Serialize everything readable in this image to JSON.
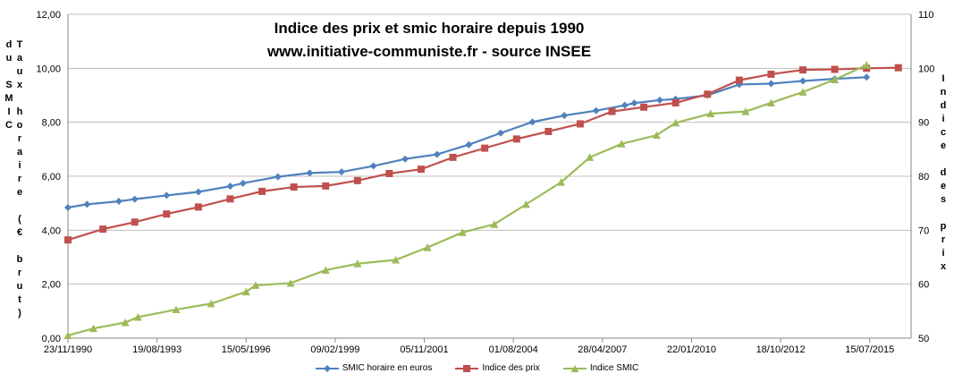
{
  "chart_data": {
    "type": "line",
    "title": "Indice des prix et smic horaire depuis 1990",
    "subtitle": "www.initiative-communiste.fr  - source INSEE",
    "ylabel_left": "Taux horaire (€ brut) du SMIC",
    "ylabel_right": "Indice des prix",
    "ylim_left": [
      0,
      12
    ],
    "ylim_right": [
      50,
      110
    ],
    "y_ticks_left": [
      "0,00",
      "2,00",
      "4,00",
      "6,00",
      "8,00",
      "10,00",
      "12,00"
    ],
    "y_ticks_right": [
      "50",
      "60",
      "70",
      "80",
      "90",
      "100",
      "110"
    ],
    "x_tick_labels": [
      "23/11/1990",
      "19/08/1993",
      "15/05/1996",
      "09/02/1999",
      "05/11/2001",
      "01/08/2004",
      "28/04/2007",
      "22/01/2010",
      "18/10/2012",
      "15/07/2015"
    ],
    "xlim": [
      1990.9,
      2017.4
    ],
    "grid": true,
    "legend_position": "bottom",
    "series": [
      {
        "name": "SMIC horaire en euros",
        "axis": "left",
        "color": "#4f81bd",
        "marker": "diamond",
        "x": [
          1990.9,
          1991.5,
          1992.5,
          1993.0,
          1994.0,
          1995.0,
          1996.0,
          1996.4,
          1997.5,
          1998.5,
          1999.5,
          2000.5,
          2001.5,
          2002.5,
          2003.5,
          2004.5,
          2005.5,
          2006.5,
          2007.5,
          2008.4,
          2008.7,
          2009.5,
          2010.0,
          2011.0,
          2012.0,
          2013.0,
          2014.0,
          2015.0,
          2016.0
        ],
        "y": [
          4.84,
          4.96,
          5.07,
          5.15,
          5.29,
          5.42,
          5.63,
          5.74,
          5.98,
          6.12,
          6.16,
          6.38,
          6.64,
          6.81,
          7.17,
          7.6,
          8.01,
          8.25,
          8.43,
          8.63,
          8.71,
          8.82,
          8.86,
          9.0,
          9.4,
          9.43,
          9.53,
          9.61,
          9.67
        ]
      },
      {
        "name": "Indice des prix",
        "axis": "right",
        "color": "#c0504d",
        "marker": "square",
        "x": [
          1990.9,
          1992.0,
          1993.0,
          1994.0,
          1995.0,
          1996.0,
          1997.0,
          1998.0,
          1999.0,
          2000.0,
          2001.0,
          2002.0,
          2003.0,
          2004.0,
          2005.0,
          2006.0,
          2007.0,
          2008.0,
          2009.0,
          2010.0,
          2011.0,
          2012.0,
          2013.0,
          2014.0,
          2015.0,
          2016.0,
          2017.0
        ],
        "y": [
          68.2,
          70.2,
          71.5,
          73.0,
          74.3,
          75.8,
          77.2,
          78.0,
          78.2,
          79.2,
          80.5,
          81.3,
          83.5,
          85.2,
          86.9,
          88.3,
          89.7,
          92.0,
          92.8,
          93.6,
          95.2,
          97.8,
          98.9,
          99.7,
          99.8,
          100.0,
          100.1
        ]
      },
      {
        "name": "Indice SMIC",
        "axis": "right",
        "color": "#9bbb59",
        "marker": "triangle",
        "x": [
          1990.9,
          1991.7,
          1992.7,
          1993.1,
          1994.3,
          1995.4,
          1996.5,
          1996.8,
          1997.9,
          1999.0,
          2000.0,
          2001.2,
          2002.2,
          2003.3,
          2004.3,
          2005.3,
          2006.4,
          2007.3,
          2008.3,
          2009.4,
          2010.0,
          2011.1,
          2012.2,
          2013.0,
          2014.0,
          2015.0,
          2016.0
        ],
        "y": [
          50.5,
          51.8,
          52.9,
          53.9,
          55.3,
          56.4,
          58.6,
          59.8,
          60.2,
          62.6,
          63.8,
          64.5,
          66.8,
          69.6,
          71.1,
          74.8,
          78.9,
          83.5,
          86.0,
          87.6,
          89.9,
          91.6,
          92.0,
          93.6,
          95.6,
          97.9,
          100.6
        ]
      }
    ]
  }
}
